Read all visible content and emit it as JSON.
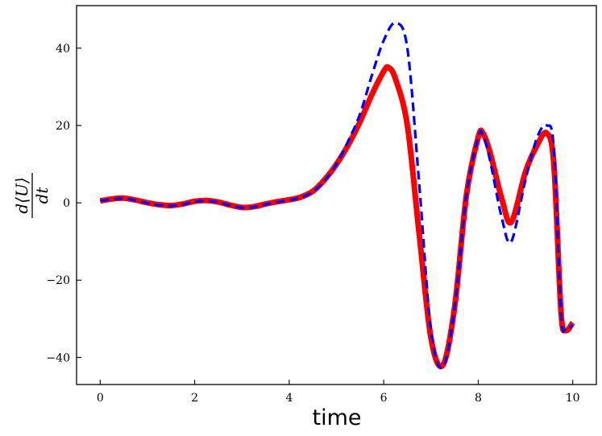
{
  "chart_data": {
    "type": "line",
    "title": "",
    "xlabel": "time",
    "ylabel": {
      "numerator": "d⟨U⟩",
      "denominator": "dt"
    },
    "xlim": [
      -0.5,
      10.5
    ],
    "ylim": [
      -47,
      51
    ],
    "xticks": [
      0,
      2,
      4,
      6,
      8,
      10
    ],
    "yticks": [
      -40,
      -20,
      0,
      20,
      40
    ],
    "ytick_labels": [
      "−40",
      "−20",
      "0",
      "20",
      "40"
    ],
    "grid": false,
    "legend": "none",
    "series": [
      {
        "color": "#ff0000",
        "style": "solid-thick",
        "x": [
          0,
          0.25,
          0.5,
          0.75,
          1.0,
          1.25,
          1.5,
          1.75,
          2.0,
          2.25,
          2.5,
          2.75,
          3.0,
          3.25,
          3.5,
          3.75,
          4.0,
          4.25,
          4.5,
          4.75,
          5.0,
          5.25,
          5.5,
          5.75,
          6.0,
          6.1,
          6.25,
          6.5,
          6.75,
          7.0,
          7.25,
          7.5,
          7.75,
          8.0,
          8.1,
          8.25,
          8.5,
          8.7,
          9.0,
          9.25,
          9.45,
          9.6,
          9.75,
          9.85,
          10.0
        ],
        "y": [
          0.5,
          1.0,
          1.2,
          0.7,
          0.0,
          -0.5,
          -0.7,
          -0.3,
          0.4,
          0.6,
          0.2,
          -0.6,
          -1.2,
          -1.0,
          -0.3,
          0.3,
          0.8,
          1.5,
          3.0,
          6.0,
          10.0,
          15.0,
          21.0,
          28.0,
          34.0,
          35.0,
          32.0,
          20.0,
          -8.0,
          -35.0,
          -42.0,
          -27.0,
          2.0,
          17.0,
          18.0,
          13.0,
          1.0,
          -5.0,
          8.0,
          15.0,
          18.0,
          10.0,
          -28.0,
          -33.0,
          -31.0
        ]
      },
      {
        "color": "#0000ff",
        "style": "dashed",
        "x": [
          0,
          0.25,
          0.5,
          0.75,
          1.0,
          1.25,
          1.5,
          1.75,
          2.0,
          2.25,
          2.5,
          2.75,
          3.0,
          3.25,
          3.5,
          3.75,
          4.0,
          4.25,
          4.5,
          4.75,
          5.0,
          5.25,
          5.5,
          5.75,
          6.0,
          6.25,
          6.5,
          6.75,
          7.0,
          7.25,
          7.5,
          7.75,
          8.0,
          8.1,
          8.25,
          8.5,
          8.7,
          9.0,
          9.25,
          9.45,
          9.6,
          9.75,
          9.85,
          10.0
        ],
        "y": [
          0.5,
          0.9,
          1.1,
          0.6,
          -0.1,
          -0.6,
          -0.8,
          -0.4,
          0.3,
          0.5,
          0.1,
          -0.7,
          -1.3,
          -1.1,
          -0.4,
          0.2,
          0.7,
          1.4,
          2.9,
          5.8,
          10.0,
          16.0,
          23.0,
          33.0,
          42.0,
          46.5,
          40.0,
          5.0,
          -33.0,
          -42.5,
          -27.0,
          2.0,
          17.0,
          17.5,
          11.0,
          -4.0,
          -10.0,
          6.0,
          17.0,
          20.0,
          14.0,
          -28.0,
          -33.0,
          -31.5
        ]
      }
    ]
  }
}
